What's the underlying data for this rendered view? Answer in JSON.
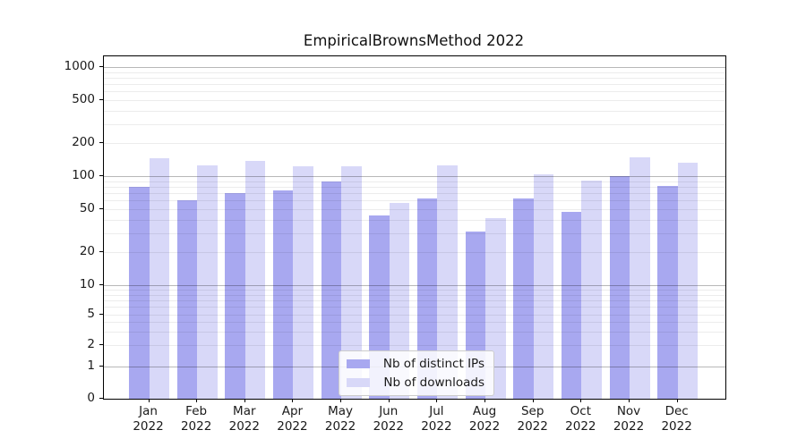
{
  "title": "EmpiricalBrownsMethod 2022",
  "chart_data": {
    "type": "bar",
    "title": "EmpiricalBrownsMethod 2022",
    "categories": [
      "Jan",
      "Feb",
      "Mar",
      "Apr",
      "May",
      "Jun",
      "Jul",
      "Aug",
      "Sep",
      "Oct",
      "Nov",
      "Dec"
    ],
    "year_label": "2022",
    "series": [
      {
        "name": "Nb of distinct IPs",
        "color": "#a8a8f0",
        "values": [
          80,
          60,
          70,
          74,
          89,
          44,
          62,
          31,
          62,
          47,
          100,
          81
        ]
      },
      {
        "name": "Nb of downloads",
        "color": "#d8d8f8",
        "values": [
          145,
          126,
          138,
          123,
          124,
          57,
          126,
          41,
          103,
          91,
          150,
          133
        ]
      }
    ],
    "yscale": "symlog",
    "ytick_values": [
      0,
      1,
      2,
      5,
      10,
      20,
      50,
      100,
      200,
      500,
      1000
    ],
    "ytick_labels": [
      "0",
      "1",
      "2",
      "5",
      "10",
      "20",
      "50",
      "100",
      "200",
      "500",
      "1000"
    ],
    "ylim": [
      0,
      1200
    ],
    "grid": true,
    "grid_over_bars": true,
    "legend_position": "lower center",
    "axis_color": "#000000",
    "background_color": "#ffffff"
  }
}
